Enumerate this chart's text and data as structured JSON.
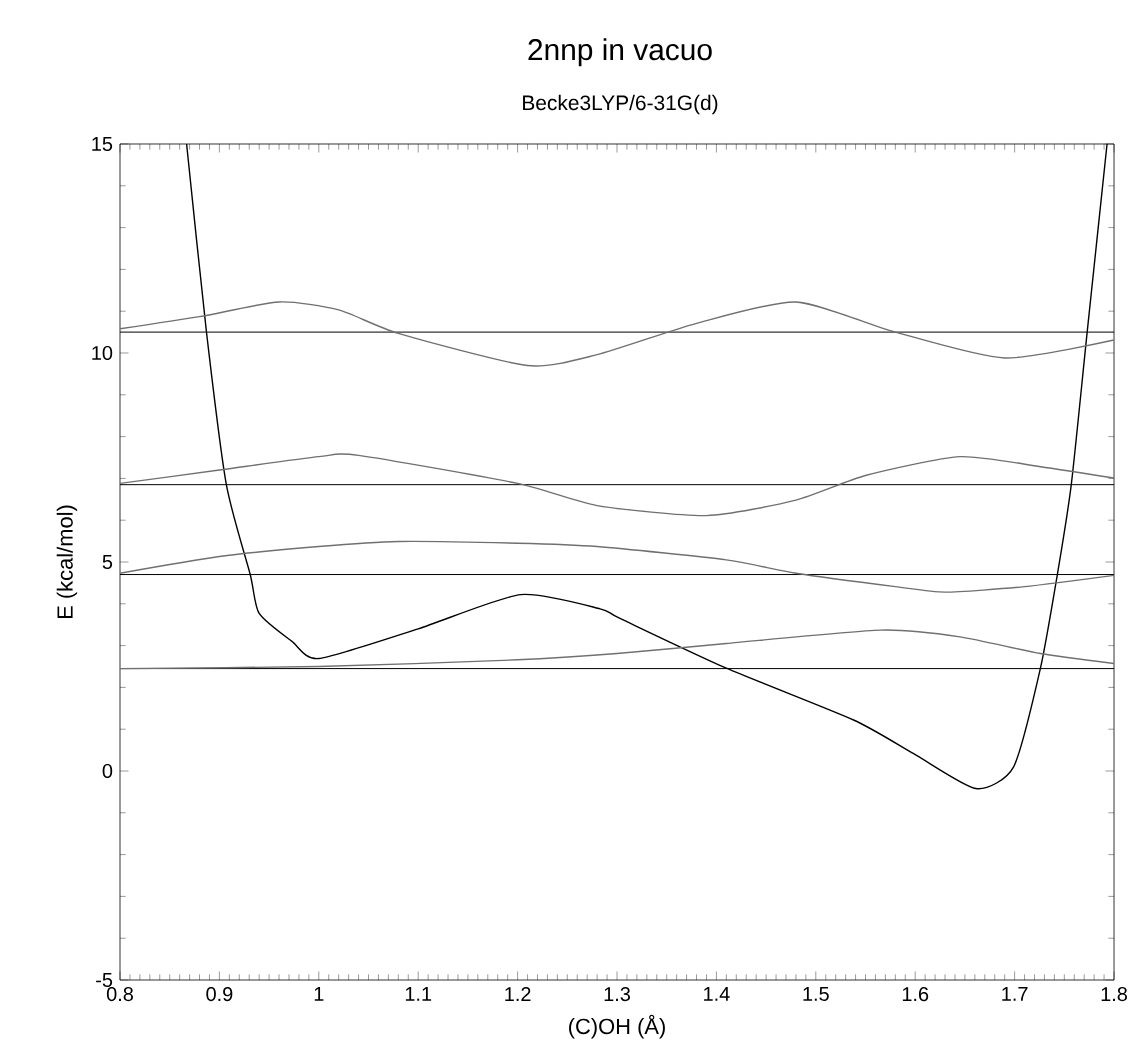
{
  "chart_data": {
    "type": "line",
    "title": "2nnp in vacuo",
    "subtitle": "Becke3LYP/6-31G(d)",
    "xlabel": "(C)OH (Å)",
    "ylabel": "E (kcal/mol)",
    "xlim": [
      0.8,
      1.8
    ],
    "ylim": [
      -5,
      15
    ],
    "xticks": [
      0.8,
      0.9,
      1,
      1.1,
      1.2,
      1.3,
      1.4,
      1.5,
      1.6,
      1.7,
      1.8
    ],
    "yticks": [
      -5,
      0,
      5,
      10,
      15
    ],
    "grid": false,
    "series": [
      {
        "color": "#000000",
        "x": [
          0.867,
          0.887,
          0.907,
          0.931,
          0.94,
          0.973,
          1.0,
          1.1,
          1.203,
          1.283,
          1.303,
          1.41,
          1.538,
          1.598,
          1.661,
          1.699,
          1.726,
          1.743,
          1.757,
          1.773,
          1.793
        ],
        "values": [
          15.0,
          10.5,
          6.85,
          4.7,
          3.77,
          3.1,
          2.69,
          3.4,
          4.22,
          3.88,
          3.65,
          2.46,
          1.22,
          0.42,
          -0.42,
          0.1,
          2.46,
          4.7,
          6.85,
          10.5,
          15.0
        ]
      },
      {
        "color": "#707070",
        "x": [
          0.8,
          1.0,
          1.2,
          1.3,
          1.41,
          1.565,
          1.645,
          1.726,
          1.8
        ],
        "values": [
          2.45,
          2.5,
          2.66,
          2.81,
          3.05,
          3.37,
          3.21,
          2.81,
          2.57
        ]
      },
      {
        "color": "#707070",
        "x": [
          0.8,
          0.9,
          1.0,
          1.08,
          1.2,
          1.28,
          1.41,
          1.48,
          1.58,
          1.63,
          1.71,
          1.8
        ],
        "values": [
          4.73,
          5.13,
          5.37,
          5.49,
          5.45,
          5.37,
          5.05,
          4.73,
          4.41,
          4.28,
          4.41,
          4.68
        ]
      },
      {
        "color": "#707070",
        "x": [
          0.8,
          0.9,
          1.0,
          1.04,
          1.2,
          1.28,
          1.39,
          1.48,
          1.55,
          1.645,
          1.726,
          1.8
        ],
        "values": [
          6.88,
          7.2,
          7.52,
          7.55,
          6.88,
          6.35,
          6.11,
          6.48,
          7.07,
          7.52,
          7.28,
          7.01
        ]
      },
      {
        "color": "#707070",
        "x": [
          0.8,
          0.88,
          0.96,
          1.02,
          1.08,
          1.21,
          1.28,
          1.38,
          1.48,
          1.58,
          1.69,
          1.8
        ],
        "values": [
          10.58,
          10.87,
          11.22,
          11.03,
          10.47,
          9.7,
          9.96,
          10.71,
          11.22,
          10.5,
          9.88,
          10.31
        ]
      }
    ],
    "ref_lines": [
      {
        "axis": "y",
        "value": 2.45,
        "color": "#000000"
      },
      {
        "axis": "y",
        "value": 4.7,
        "color": "#000000"
      },
      {
        "axis": "y",
        "value": 6.85,
        "color": "#000000"
      },
      {
        "axis": "y",
        "value": 10.5,
        "color": "#000000"
      }
    ]
  }
}
